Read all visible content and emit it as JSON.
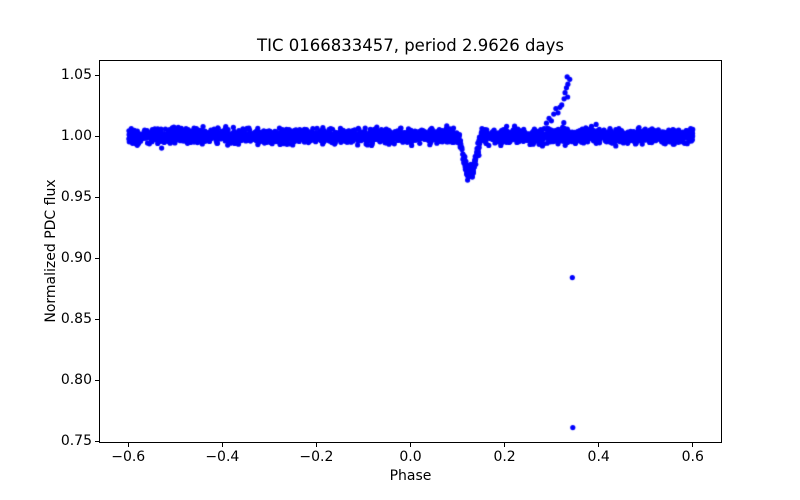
{
  "chart_data": {
    "type": "scatter",
    "title": "TIC 0166833457, period 2.9626 days",
    "xlabel": "Phase",
    "ylabel": "Normalized PDC flux",
    "xlim": [
      -0.66,
      0.66
    ],
    "ylim": [
      0.7492,
      1.0615
    ],
    "xticks": [
      -0.6,
      -0.4,
      -0.2,
      0.0,
      0.2,
      0.4,
      0.6
    ],
    "xtick_labels": [
      "−0.6",
      "−0.4",
      "−0.2",
      "0.0",
      "0.2",
      "0.4",
      "0.6"
    ],
    "yticks": [
      0.75,
      0.8,
      0.85,
      0.9,
      0.95,
      1.0,
      1.05
    ],
    "ytick_labels": [
      "0.75",
      "0.80",
      "0.85",
      "0.90",
      "0.95",
      "1.00",
      "1.05"
    ],
    "grid": false,
    "legend": false,
    "marker": {
      "color": "#0000ff",
      "radius_px": 2.6
    },
    "series": [
      {
        "name": "phase-folded-flux-band",
        "kind": "noise-band",
        "description": "dense phase-folded light curve band around normalized flux 1.0",
        "n_points": 3000,
        "x_range": [
          -0.6,
          0.6
        ],
        "y_center": 1.0,
        "y_sigma": 0.0028,
        "seed": 42
      },
      {
        "name": "eclipse-dip",
        "kind": "transit-profile",
        "applies_to": "phase-folded-flux-band",
        "x_start": 0.102,
        "x_flat_start": 0.121,
        "x_flat_end": 0.131,
        "x_end": 0.15,
        "depth": 0.03,
        "min_flux": 0.97
      },
      {
        "name": "flare",
        "kind": "points",
        "points": [
          [
            0.289,
            1.0105
          ],
          [
            0.2945,
            1.0145
          ],
          [
            0.2995,
            1.0125
          ],
          [
            0.3045,
            1.018
          ],
          [
            0.309,
            1.0225
          ],
          [
            0.3135,
            1.019
          ],
          [
            0.3175,
            1.0235
          ],
          [
            0.3215,
            1.0255
          ],
          [
            0.3265,
            1.0305
          ],
          [
            0.3285,
            1.0355
          ],
          [
            0.334,
            1.032
          ],
          [
            0.3315,
            1.0395
          ],
          [
            0.3345,
            1.0425
          ],
          [
            0.333,
            1.0485
          ],
          [
            0.3385,
            1.0465
          ]
        ]
      },
      {
        "name": "deep-eclipse-outliers",
        "kind": "points",
        "points": [
          [
            0.344,
            0.884
          ],
          [
            0.345,
            0.761
          ]
        ]
      }
    ]
  }
}
